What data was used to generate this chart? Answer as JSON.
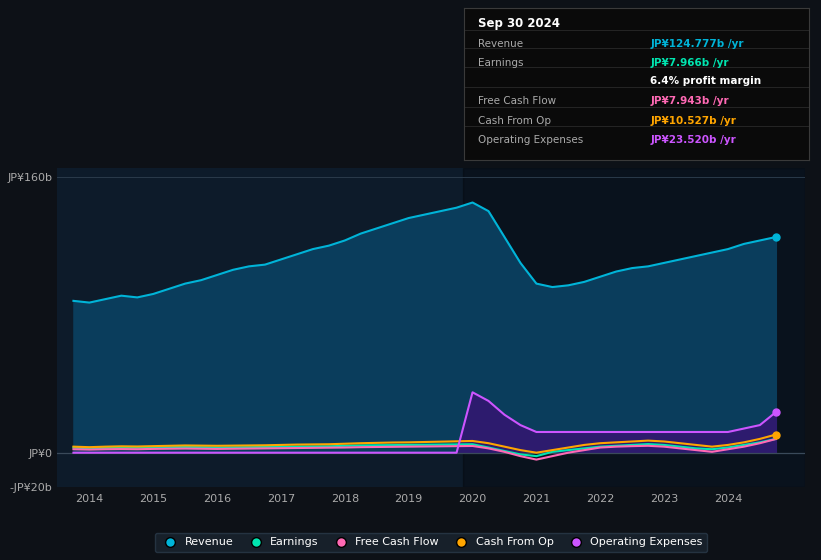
{
  "bg_color": "#0d1117",
  "chart_bg": "#0d1b2a",
  "panel_bg": "#0a0a0a",
  "title": "Sep 30 2024",
  "info_rows": [
    {
      "label": "Revenue",
      "value": "JP¥124.777b /yr",
      "color": "#00b4d8"
    },
    {
      "label": "Earnings",
      "value": "JP¥7.966b /yr",
      "color": "#00e5b0"
    },
    {
      "label": "",
      "value": "6.4% profit margin",
      "color": "#ffffff"
    },
    {
      "label": "Free Cash Flow",
      "value": "JP¥7.943b /yr",
      "color": "#ff69b4"
    },
    {
      "label": "Cash From Op",
      "value": "JP¥10.527b /yr",
      "color": "#ffa500"
    },
    {
      "label": "Operating Expenses",
      "value": "JP¥23.520b /yr",
      "color": "#cc55ff"
    }
  ],
  "years": [
    2013.75,
    2014.0,
    2014.25,
    2014.5,
    2014.75,
    2015.0,
    2015.25,
    2015.5,
    2015.75,
    2016.0,
    2016.25,
    2016.5,
    2016.75,
    2017.0,
    2017.25,
    2017.5,
    2017.75,
    2018.0,
    2018.25,
    2018.5,
    2018.75,
    2019.0,
    2019.25,
    2019.5,
    2019.75,
    2020.0,
    2020.25,
    2020.5,
    2020.75,
    2021.0,
    2021.25,
    2021.5,
    2021.75,
    2022.0,
    2022.25,
    2022.5,
    2022.75,
    2023.0,
    2023.25,
    2023.5,
    2023.75,
    2024.0,
    2024.25,
    2024.5,
    2024.75
  ],
  "revenue": [
    88,
    87,
    89,
    91,
    90,
    92,
    95,
    98,
    100,
    103,
    106,
    108,
    109,
    112,
    115,
    118,
    120,
    123,
    127,
    130,
    133,
    136,
    138,
    140,
    142,
    145,
    140,
    125,
    110,
    98,
    96,
    97,
    99,
    102,
    105,
    107,
    108,
    110,
    112,
    114,
    116,
    118,
    121,
    123,
    125
  ],
  "earnings": [
    3.0,
    2.5,
    2.8,
    3.0,
    2.9,
    3.1,
    3.2,
    3.3,
    3.2,
    3.0,
    3.1,
    3.2,
    3.3,
    3.4,
    3.5,
    3.6,
    3.7,
    4.0,
    4.2,
    4.3,
    4.4,
    4.5,
    4.6,
    4.7,
    4.8,
    4.9,
    3.0,
    1.0,
    -1.0,
    -2.0,
    0.5,
    1.5,
    2.5,
    3.5,
    4.0,
    4.5,
    5.0,
    4.5,
    3.5,
    2.5,
    2.0,
    3.0,
    4.5,
    6.0,
    8.0
  ],
  "free_cash_flow": [
    2.0,
    1.8,
    2.0,
    2.1,
    2.0,
    2.2,
    2.3,
    2.4,
    2.3,
    2.2,
    2.3,
    2.4,
    2.5,
    2.6,
    2.7,
    2.8,
    2.9,
    3.0,
    3.2,
    3.3,
    3.4,
    3.5,
    3.6,
    3.7,
    3.8,
    3.9,
    2.5,
    0.5,
    -2.0,
    -4.0,
    -2.0,
    0.0,
    1.5,
    3.0,
    3.5,
    3.8,
    4.0,
    3.5,
    2.5,
    1.5,
    0.5,
    2.0,
    3.5,
    5.5,
    7.9
  ],
  "cash_from_op": [
    3.5,
    3.2,
    3.5,
    3.7,
    3.6,
    3.8,
    4.0,
    4.2,
    4.1,
    4.0,
    4.1,
    4.2,
    4.3,
    4.5,
    4.7,
    4.8,
    4.9,
    5.2,
    5.5,
    5.7,
    5.9,
    6.0,
    6.2,
    6.4,
    6.6,
    6.8,
    5.5,
    3.5,
    1.5,
    0.0,
    1.5,
    3.0,
    4.5,
    5.5,
    6.0,
    6.5,
    7.0,
    6.5,
    5.5,
    4.5,
    3.5,
    4.5,
    6.0,
    8.0,
    10.5
  ],
  "op_expenses": [
    0,
    0,
    0,
    0,
    0,
    0,
    0,
    0,
    0,
    0,
    0,
    0,
    0,
    0,
    0,
    0,
    0,
    0,
    0,
    0,
    0,
    0,
    0,
    0,
    0,
    35,
    30,
    22,
    16,
    12,
    12,
    12,
    12,
    12,
    12,
    12,
    12,
    12,
    12,
    12,
    12,
    12,
    14,
    16,
    23.5
  ],
  "ylim": [
    -20,
    165
  ],
  "yticks": [
    -20,
    0,
    160
  ],
  "ytick_labels": [
    "-JP¥20b",
    "JP¥0",
    "JP¥160b"
  ],
  "xtick_years": [
    2014,
    2015,
    2016,
    2017,
    2018,
    2019,
    2020,
    2021,
    2022,
    2023,
    2024
  ],
  "revenue_color": "#00b4d8",
  "earnings_color": "#00e5b0",
  "fcf_color": "#ff69b4",
  "cash_op_color": "#ffa500",
  "op_exp_color": "#cc55ff",
  "revenue_fill": "#0a3d5c",
  "op_exp_fill": "#2d1b6e",
  "legend_items": [
    "Revenue",
    "Earnings",
    "Free Cash Flow",
    "Cash From Op",
    "Operating Expenses"
  ],
  "legend_colors": [
    "#00b4d8",
    "#00e5b0",
    "#ff69b4",
    "#ffa500",
    "#cc55ff"
  ]
}
